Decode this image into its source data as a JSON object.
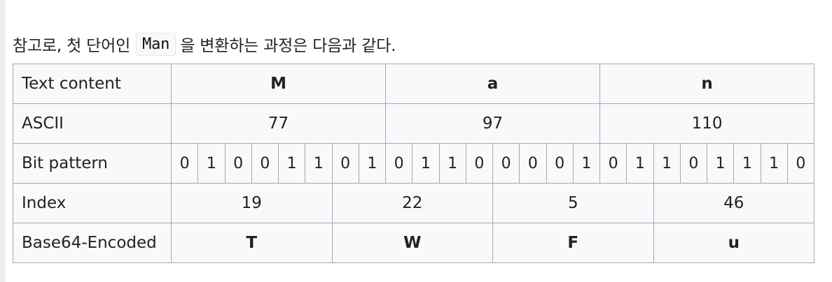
{
  "intro": {
    "before": "참고로, 첫 단어인",
    "code": "Man",
    "after": "을 변환하는 과정은 다음과 같다."
  },
  "table": {
    "rows": {
      "text": {
        "label": "Text content",
        "cells": [
          "M",
          "a",
          "n"
        ]
      },
      "ascii": {
        "label": "ASCII",
        "cells": [
          "77",
          "97",
          "110"
        ]
      },
      "bits": {
        "label": "Bit pattern",
        "cells": [
          "0",
          "1",
          "0",
          "0",
          "1",
          "1",
          "0",
          "1",
          "0",
          "1",
          "1",
          "0",
          "0",
          "0",
          "0",
          "1",
          "0",
          "1",
          "1",
          "0",
          "1",
          "1",
          "1",
          "0"
        ]
      },
      "index": {
        "label": "Index",
        "cells": [
          "19",
          "22",
          "5",
          "46"
        ]
      },
      "encoded": {
        "label": "Base64-Encoded",
        "cells": [
          "T",
          "W",
          "F",
          "u"
        ]
      }
    }
  }
}
